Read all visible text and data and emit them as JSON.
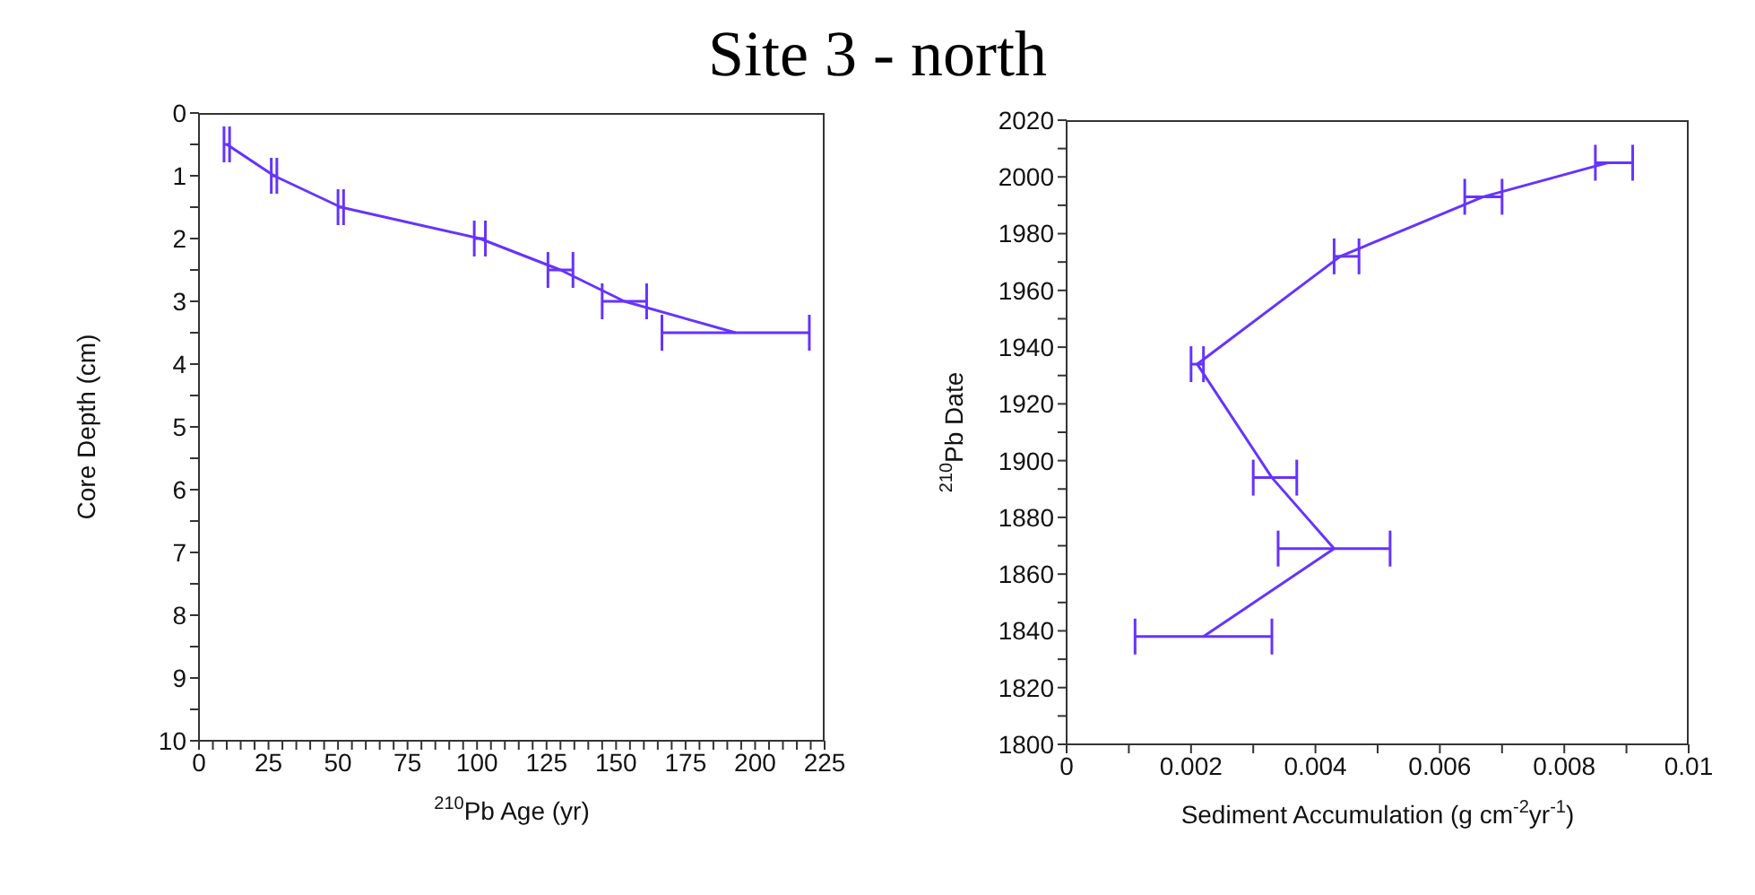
{
  "chart_data": [
    {
      "type": "line",
      "title": "Site 3 - north",
      "xlabel": "$^{210}$Pb Age (yr)",
      "ylabel": "Core Depth (cm)",
      "x": [
        10,
        27,
        51,
        101,
        130,
        153,
        193
      ],
      "series": [
        {
          "color": "#6633ff",
          "values": [
            0.5,
            1,
            1.5,
            2,
            2.5,
            3,
            3.5
          ],
          "xerrors": [
            1,
            1,
            1,
            2,
            4.5,
            8,
            26.5
          ]
        }
      ],
      "xlim": [
        0,
        225
      ],
      "ylim": [
        10,
        0
      ],
      "xticks": [
        0,
        {
          "value": 5,
          "label": null
        },
        {
          "value": 10,
          "label": null
        },
        {
          "value": 15,
          "label": null
        },
        {
          "value": 20,
          "label": null
        },
        25,
        {
          "value": 30,
          "label": null
        },
        {
          "value": 35,
          "label": null
        },
        {
          "value": 40,
          "label": null
        },
        {
          "value": 45,
          "label": null
        },
        50,
        {
          "value": 55,
          "label": null
        },
        {
          "value": 60,
          "label": null
        },
        {
          "value": 65,
          "label": null
        },
        {
          "value": 70,
          "label": null
        },
        75,
        {
          "value": 80,
          "label": null
        },
        {
          "value": 85,
          "label": null
        },
        {
          "value": 90,
          "label": null
        },
        {
          "value": 95,
          "label": null
        },
        100,
        {
          "value": 105,
          "label": null
        },
        {
          "value": 110,
          "label": null
        },
        {
          "value": 115,
          "label": null
        },
        {
          "value": 120,
          "label": null
        },
        125,
        {
          "value": 130,
          "label": null
        },
        {
          "value": 135,
          "label": null
        },
        {
          "value": 140,
          "label": null
        },
        {
          "value": 145,
          "label": null
        },
        150,
        {
          "value": 155,
          "label": null
        },
        {
          "value": 160,
          "label": null
        },
        {
          "value": 165,
          "label": null
        },
        {
          "value": 170,
          "label": null
        },
        175,
        {
          "value": 180,
          "label": null
        },
        {
          "value": 185,
          "label": null
        },
        {
          "value": 190,
          "label": null
        },
        {
          "value": 195,
          "label": null
        },
        200,
        {
          "value": 205,
          "label": null
        },
        {
          "value": 210,
          "label": null
        },
        {
          "value": 215,
          "label": null
        },
        {
          "value": 220,
          "label": null
        },
        225
      ],
      "yticks": [
        0,
        {
          "value": 0.5,
          "label": null
        },
        1,
        {
          "value": 1.5,
          "label": null
        },
        2,
        {
          "value": 2.5,
          "label": null
        },
        3,
        {
          "value": 3.5,
          "label": null
        },
        4,
        {
          "value": 4.5,
          "label": null
        },
        5,
        {
          "value": 5.5,
          "label": null
        },
        6,
        {
          "value": 6.5,
          "label": null
        },
        7,
        {
          "value": 7.5,
          "label": null
        },
        8,
        {
          "value": 8.5,
          "label": null
        },
        9,
        {
          "value": 9.5,
          "label": null
        },
        10
      ],
      "grid": false
    },
    {
      "type": "line",
      "xlabel": "Sediment Accumulation (g cm$^{-2}$yr$^{-1}$)",
      "ylabel": "$^{210}$Pb Date",
      "x": [
        0.0087,
        0.0067,
        0.0044,
        0.0021,
        0.0033,
        0.0043,
        0.0022
      ],
      "series": [
        {
          "color": "#6633ff",
          "values": [
            2005,
            1993,
            1972,
            1934,
            1894,
            1869,
            1838
          ],
          "xerrors": [
            [
              0.0085,
              0.0091
            ],
            [
              0.0064,
              0.007
            ],
            [
              0.0043,
              0.0047
            ],
            [
              0.002,
              0.0022
            ],
            [
              0.003,
              0.0037
            ],
            [
              0.0034,
              0.0052
            ],
            [
              0.0011,
              0.0033
            ]
          ]
        }
      ],
      "xlim": [
        0,
        0.01
      ],
      "ylim": [
        1800,
        2020
      ],
      "xticks": [
        0,
        {
          "value": 0.001,
          "label": null
        },
        0.002,
        {
          "value": 0.003,
          "label": null
        },
        0.004,
        {
          "value": 0.005,
          "label": null
        },
        0.006,
        {
          "value": 0.007,
          "label": null
        },
        0.008,
        {
          "value": 0.009,
          "label": null
        },
        0.01
      ],
      "yticks": [
        1800,
        {
          "value": 1810,
          "label": null
        },
        1820,
        {
          "value": 1830,
          "label": null
        },
        1840,
        {
          "value": 1850,
          "label": null
        },
        1860,
        {
          "value": 1870,
          "label": null
        },
        1880,
        {
          "value": 1890,
          "label": null
        },
        1900,
        {
          "value": 1910,
          "label": null
        },
        1920,
        {
          "value": 1930,
          "label": null
        },
        1940,
        {
          "value": 1950,
          "label": null
        },
        1960,
        {
          "value": 1970,
          "label": null
        },
        1980,
        {
          "value": 1990,
          "label": null
        },
        2000,
        {
          "value": 2010,
          "label": null
        },
        2020
      ],
      "grid": false
    }
  ]
}
